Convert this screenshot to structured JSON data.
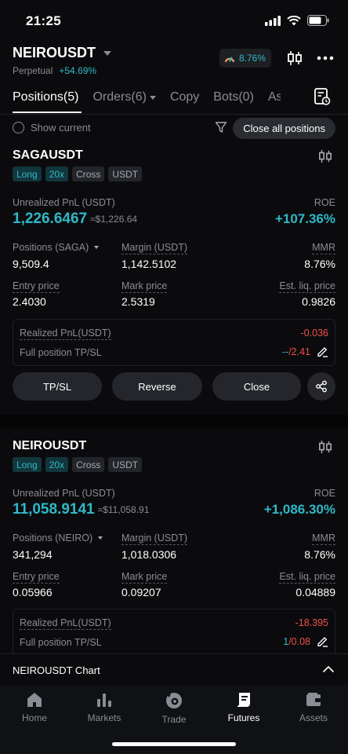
{
  "status_bar": {
    "time": "21:25"
  },
  "header": {
    "pair": "NEIROUSDT",
    "contract_type": "Perpetual",
    "change": "+54.69%",
    "gauge_value": "8.76%"
  },
  "tabs": [
    {
      "label": "Positions(5)",
      "active": true
    },
    {
      "label": "Orders(6)",
      "has_caret": true
    },
    {
      "label": "Copy"
    },
    {
      "label": "Bots(0)"
    },
    {
      "label": "As"
    }
  ],
  "filter": {
    "show_current": "Show current",
    "close_all": "Close all positions"
  },
  "labels": {
    "unrealized_pnl": "Unrealized PnL (USDT)",
    "roe": "ROE",
    "margin": "Margin (USDT)",
    "mmr": "MMR",
    "entry_price": "Entry price",
    "mark_price": "Mark price",
    "est_liq": "Est. liq. price",
    "realized_pnl": "Realized PnL(USDT)",
    "full_tpsl": "Full position TP/SL",
    "tpsl_btn": "TP/SL",
    "reverse_btn": "Reverse",
    "close_btn": "Close"
  },
  "positions": [
    {
      "symbol": "SAGAUSDT",
      "tags": [
        "Long",
        "20x",
        "Cross",
        "USDT"
      ],
      "unrealized_pnl": "1,226.6467",
      "unrealized_pnl_fiat": "≈$1,226.64",
      "roe": "+107.36%",
      "positions_label": "Positions (SAGA)",
      "positions": "9,509.4",
      "margin": "1,142.5102",
      "mmr": "8.76%",
      "entry_price": "2.4030",
      "mark_price": "2.5319",
      "est_liq": "0.9826",
      "realized_pnl": "-0.036",
      "tp": "--",
      "sl": "/2.41"
    },
    {
      "symbol": "NEIROUSDT",
      "tags": [
        "Long",
        "20x",
        "Cross",
        "USDT"
      ],
      "unrealized_pnl": "11,058.9141",
      "unrealized_pnl_fiat": "≈$11,058.91",
      "roe": "+1,086.30%",
      "positions_label": "Positions (NEIRO)",
      "positions": "341,294",
      "margin": "1,018.0306",
      "mmr": "8.76%",
      "entry_price": "0.05966",
      "mark_price": "0.09207",
      "est_liq": "0.04889",
      "realized_pnl": "-18.395",
      "tp": "1",
      "sl": "/0.08"
    }
  ],
  "chart_bar": {
    "label": "NEIROUSDT  Chart"
  },
  "nav": [
    {
      "label": "Home",
      "icon": "home-icon"
    },
    {
      "label": "Markets",
      "icon": "markets-icon"
    },
    {
      "label": "Trade",
      "icon": "trade-icon"
    },
    {
      "label": "Futures",
      "icon": "futures-icon",
      "active": true
    },
    {
      "label": "Assets",
      "icon": "assets-icon"
    }
  ],
  "colors": {
    "accent": "#2fb8c9",
    "negative": "#f0504b",
    "liq": "#f5a35c"
  }
}
